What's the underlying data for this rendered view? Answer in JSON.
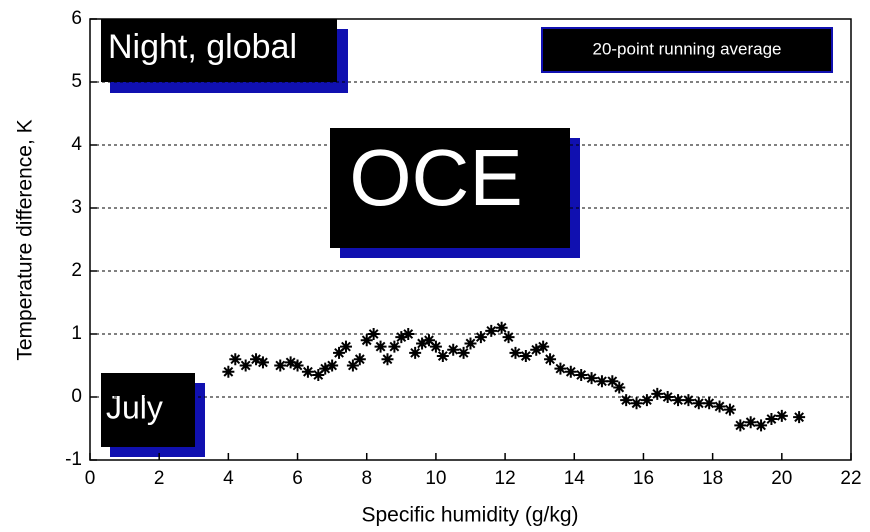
{
  "chart_data": {
    "type": "scatter",
    "title": "OCE",
    "annotations": [
      "Night, global",
      "20-point running average",
      "July"
    ],
    "x_label": "Specific humidity (g/kg)",
    "y_label": "Temperature difference, K",
    "xlim": [
      0,
      22
    ],
    "xticks": [
      0,
      2,
      4,
      6,
      8,
      10,
      12,
      14,
      16,
      18,
      20,
      22
    ],
    "ylim": [
      -1,
      6
    ],
    "yticks": [
      -1,
      0,
      1,
      2,
      3,
      4,
      5,
      6
    ],
    "grid": true,
    "color": "#000000",
    "x": [
      4.0,
      4.2,
      4.5,
      4.8,
      5.0,
      5.5,
      5.8,
      6.0,
      6.3,
      6.6,
      6.8,
      7.0,
      7.2,
      7.4,
      7.6,
      7.8,
      8.0,
      8.2,
      8.4,
      8.6,
      8.8,
      9.0,
      9.2,
      9.4,
      9.6,
      9.8,
      10.0,
      10.2,
      10.5,
      10.8,
      11.0,
      11.3,
      11.6,
      11.9,
      12.1,
      12.3,
      12.6,
      12.9,
      13.1,
      13.3,
      13.6,
      13.9,
      14.2,
      14.5,
      14.8,
      15.1,
      15.3,
      15.5,
      15.8,
      16.1,
      16.4,
      16.7,
      17.0,
      17.3,
      17.6,
      17.9,
      18.2,
      18.5,
      18.8,
      19.1,
      19.4,
      19.7,
      20.0,
      20.5
    ],
    "values": [
      0.4,
      0.6,
      0.5,
      0.6,
      0.55,
      0.5,
      0.55,
      0.5,
      0.4,
      0.35,
      0.45,
      0.5,
      0.7,
      0.8,
      0.5,
      0.6,
      0.9,
      1.0,
      0.8,
      0.6,
      0.8,
      0.95,
      1.0,
      0.7,
      0.85,
      0.9,
      0.8,
      0.65,
      0.75,
      0.7,
      0.85,
      0.95,
      1.05,
      1.1,
      0.95,
      0.7,
      0.65,
      0.75,
      0.8,
      0.6,
      0.45,
      0.4,
      0.35,
      0.3,
      0.25,
      0.25,
      0.15,
      -0.05,
      -0.1,
      -0.05,
      0.05,
      0.0,
      -0.05,
      -0.05,
      -0.1,
      -0.1,
      -0.15,
      -0.2,
      -0.45,
      -0.4,
      -0.45,
      -0.35,
      -0.3,
      -0.32
    ]
  }
}
